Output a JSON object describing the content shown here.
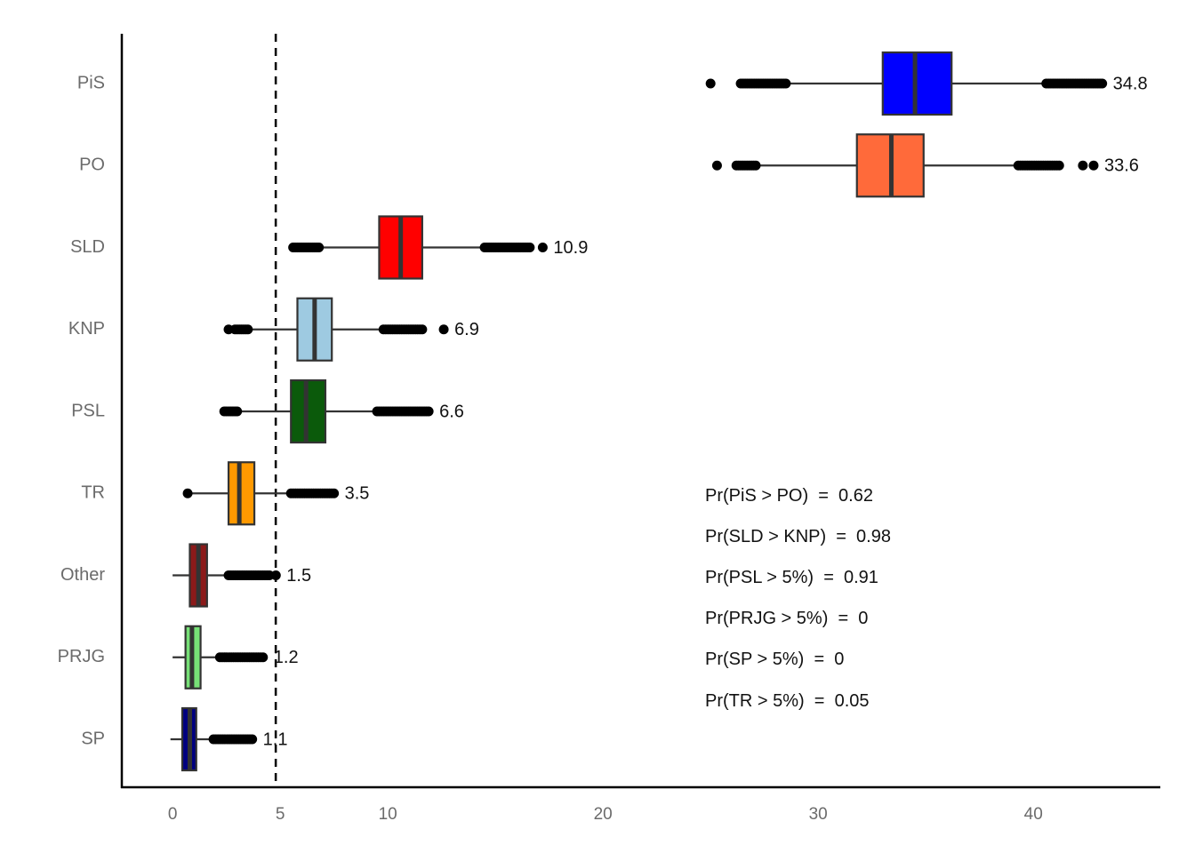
{
  "chart_data": {
    "type": "boxplot",
    "title": "",
    "xlabel": "",
    "ylabel": "",
    "xlim": [
      -2.36,
      45.9
    ],
    "x_ticks": [
      "0",
      "5",
      "10",
      "20",
      "30",
      "40"
    ],
    "x_tick_values": [
      0,
      5,
      10,
      20,
      30,
      40
    ],
    "reference_line": {
      "value": 5,
      "style": "dashed"
    },
    "grid": false,
    "series": [
      {
        "name": "PiS",
        "color": "#0000FF",
        "q1": 33.0,
        "median": 34.5,
        "q3": 36.2,
        "whisker_low": 28.5,
        "whisker_high": 40.6,
        "outliers": [
          25.0
        ],
        "outlier_ranges": [
          [
            26.4,
            28.5
          ],
          [
            40.6,
            43.2
          ]
        ],
        "label": "34.8"
      },
      {
        "name": "PO",
        "color": "#FF6A3A",
        "q1": 31.8,
        "median": 33.4,
        "q3": 34.9,
        "whisker_low": 27.1,
        "whisker_high": 39.3,
        "outliers": [
          25.3,
          42.3,
          42.8
        ],
        "outlier_ranges": [
          [
            26.2,
            27.1
          ],
          [
            39.3,
            41.2
          ]
        ],
        "label": "33.6"
      },
      {
        "name": "SLD",
        "color": "#FF0000",
        "q1": 9.6,
        "median": 10.6,
        "q3": 11.6,
        "whisker_low": 6.8,
        "whisker_high": 14.5,
        "outliers": [
          17.2
        ],
        "outlier_ranges": [
          [
            5.6,
            6.8
          ],
          [
            14.5,
            16.6
          ]
        ],
        "label": "10.9"
      },
      {
        "name": "KNP",
        "color": "#9ECAE1",
        "q1": 5.8,
        "median": 6.6,
        "q3": 7.4,
        "whisker_low": 3.5,
        "whisker_high": 9.8,
        "outliers": [
          2.6,
          12.6
        ],
        "outlier_ranges": [
          [
            2.9,
            3.5
          ],
          [
            9.8,
            11.6
          ]
        ],
        "label": "6.9"
      },
      {
        "name": "PSL",
        "color": "#0B5A0B",
        "q1": 5.5,
        "median": 6.2,
        "q3": 7.1,
        "whisker_low": 3.0,
        "whisker_high": 9.5,
        "outliers": [],
        "outlier_ranges": [
          [
            2.4,
            3.0
          ],
          [
            9.5,
            11.9
          ]
        ],
        "label": "6.6"
      },
      {
        "name": "TR",
        "color": "#FF9900",
        "q1": 2.6,
        "median": 3.1,
        "q3": 3.8,
        "whisker_low": 0.7,
        "whisker_high": 5.5,
        "outliers": [
          0.7
        ],
        "outlier_ranges": [
          [
            5.5,
            7.5
          ]
        ],
        "label": "3.5"
      },
      {
        "name": "Other",
        "color": "#8B1A1A",
        "q1": 0.8,
        "median": 1.2,
        "q3": 1.6,
        "whisker_low": 0.0,
        "whisker_high": 2.6,
        "outliers": [
          4.8
        ],
        "outlier_ranges": [
          [
            2.6,
            4.5
          ]
        ],
        "label": "1.5"
      },
      {
        "name": "PRJG",
        "color": "#77E077",
        "q1": 0.6,
        "median": 0.9,
        "q3": 1.3,
        "whisker_low": 0.0,
        "whisker_high": 2.2,
        "outliers": [],
        "outlier_ranges": [
          [
            2.2,
            4.2
          ]
        ],
        "label": "1.2"
      },
      {
        "name": "SP",
        "color": "#000080",
        "q1": 0.45,
        "median": 0.8,
        "q3": 1.1,
        "whisker_low": -0.1,
        "whisker_high": 1.9,
        "outliers": [],
        "outlier_ranges": [
          [
            1.9,
            3.7
          ]
        ],
        "label": "1.1"
      }
    ],
    "annotations": [
      "Pr(PiS > PO)  =  0.62",
      "Pr(SLD > KNP)  =  0.98",
      "Pr(PSL > 5%)  =  0.91",
      "Pr(PRJG > 5%)  =  0",
      "Pr(SP > 5%)  =  0",
      "Pr(TR > 5%)  =  0.05"
    ]
  }
}
